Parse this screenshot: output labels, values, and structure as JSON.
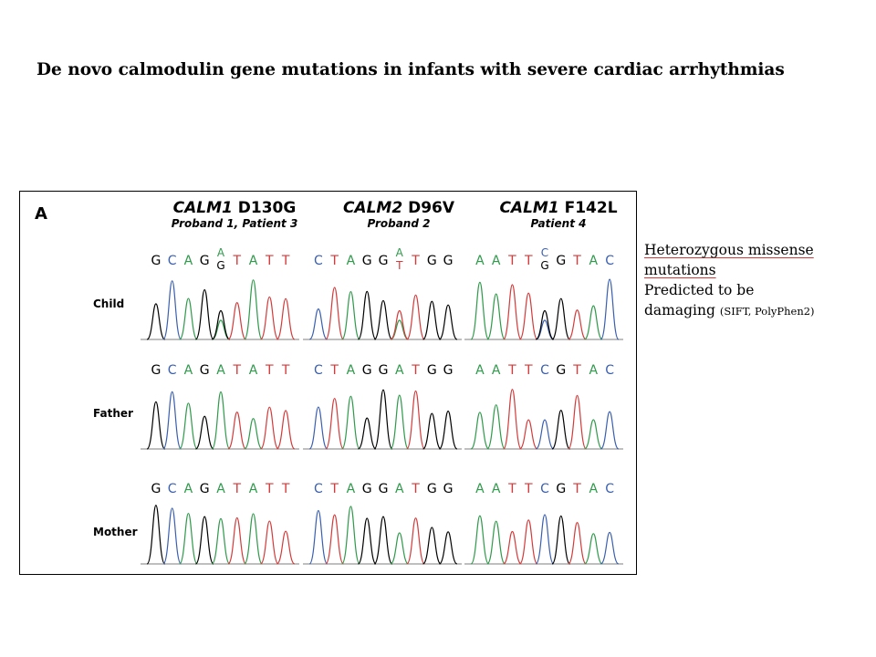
{
  "slide": {
    "title": "De novo calmodulin gene mutations in infants with severe cardiac arrhythmias"
  },
  "figure": {
    "panel_letter": "A",
    "columns": [
      {
        "gene": "CALM1",
        "mutation": "D130G",
        "subtitle": "Proband 1, Patient 3"
      },
      {
        "gene": "CALM2",
        "mutation": "D96V",
        "subtitle": "Proband 2"
      },
      {
        "gene": "CALM1",
        "mutation": "F142L",
        "subtitle": "Patient 4"
      }
    ],
    "rows": [
      "Child",
      "Father",
      "Mother"
    ],
    "base_colors": {
      "G": "#000000",
      "C": "#3a5fb0",
      "A": "#2e9a4a",
      "T": "#d43a3a"
    },
    "sequences": {
      "child": [
        [
          "G",
          "C",
          "A",
          "G",
          "A/G",
          "T",
          "A",
          "T",
          "T"
        ],
        [
          "C",
          "T",
          "A",
          "G",
          "G",
          "A/T",
          "T",
          "G",
          "G"
        ],
        [
          "A",
          "A",
          "T",
          "T",
          "C/G",
          "G",
          "T",
          "A",
          "C"
        ]
      ],
      "father": [
        [
          "G",
          "C",
          "A",
          "G",
          "A",
          "T",
          "A",
          "T",
          "T"
        ],
        [
          "C",
          "T",
          "A",
          "G",
          "G",
          "A",
          "T",
          "G",
          "G"
        ],
        [
          "A",
          "A",
          "T",
          "T",
          "C",
          "G",
          "T",
          "A",
          "C"
        ]
      ],
      "mother": [
        [
          "G",
          "C",
          "A",
          "G",
          "A",
          "T",
          "A",
          "T",
          "T"
        ],
        [
          "C",
          "T",
          "A",
          "G",
          "G",
          "A",
          "T",
          "G",
          "G"
        ],
        [
          "A",
          "A",
          "T",
          "T",
          "C",
          "G",
          "T",
          "A",
          "C"
        ]
      ]
    }
  },
  "notes": {
    "line1": "Heterozygous missense",
    "line2": "mutations",
    "line3": "Predicted to be",
    "line4": "damaging",
    "line4_small": "(SIFT, PolyPhen2)"
  }
}
